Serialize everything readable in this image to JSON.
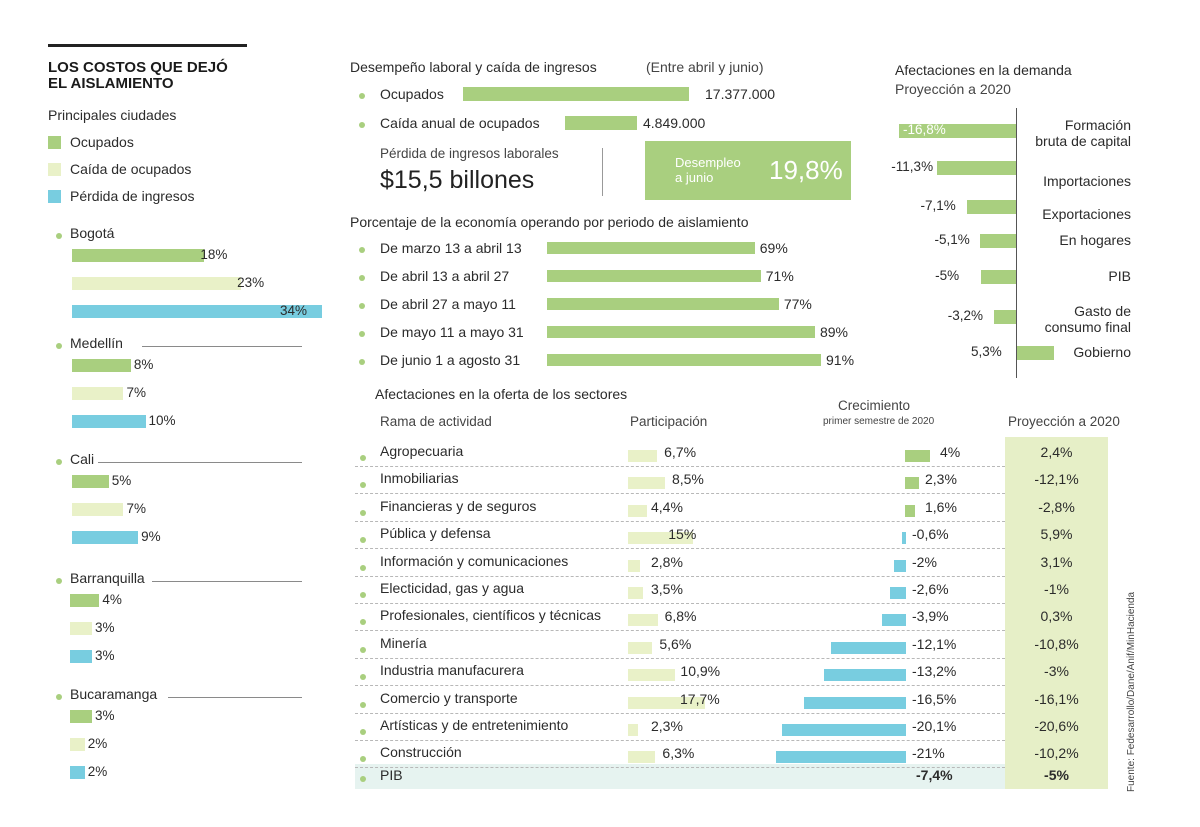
{
  "colors": {
    "ocupados": "#a9cf7f",
    "caida": "#e9f1c8",
    "perdida": "#78cde0",
    "proy_bg": "#e6efc7",
    "pib_bg": "#e6f3f0",
    "dot": "#a9cf7f"
  },
  "title": {
    "line1": "LOS COSTOS QUE DEJÓ",
    "line2": "EL AISLAMIENTO"
  },
  "cities": {
    "subtitle": "Principales ciudades",
    "legend": [
      {
        "label": "Ocupados",
        "color": "#a9cf7f"
      },
      {
        "label": "Caída de ocupados",
        "color": "#e9f1c8"
      },
      {
        "label": "Pérdida de ingresos",
        "color": "#78cde0"
      }
    ]
  },
  "employment": {
    "title": "Desempeño laboral y caída de ingresos",
    "note": "(Entre abril y junio)",
    "rows": [
      {
        "label": "Ocupados",
        "value": "17.377.000",
        "amount": 17377000
      },
      {
        "label": "Caída anual de ocupados",
        "value": "4.849.000",
        "amount": 4849000
      }
    ],
    "loss_label": "Pérdida de ingresos laborales",
    "loss_value": "$15,5 billones",
    "unemp_label1": "Desempleo",
    "unemp_label2": "a junio",
    "unemp_value": "19,8%"
  },
  "economy": {
    "title": "Porcentaje de la economía operando por periodo de aislamiento"
  },
  "demand": {
    "title": "Afectaciones en la demanda",
    "subtitle": "Proyección a 2020"
  },
  "supply": {
    "title": "Afectaciones en la oferta de los sectores",
    "col_rama": "Rama de actividad",
    "col_part": "Participación",
    "col_crec": "Crecimiento",
    "col_crec_sub": "primer semestre de 2020",
    "col_proy": "Proyección a 2020"
  },
  "source": "Fuente: Fedesarrollo/Dane/Anif/MinHacienda",
  "chart_data": [
    {
      "type": "bar",
      "title": "Principales ciudades",
      "categories": [
        "Bogotá",
        "Medellín",
        "Cali",
        "Barranquilla",
        "Bucaramanga"
      ],
      "series": [
        {
          "name": "Ocupados",
          "values": [
            18,
            8,
            5,
            4,
            3
          ],
          "labels": [
            "18%",
            "8%",
            "5%",
            "4%",
            "3%"
          ]
        },
        {
          "name": "Caída de ocupados",
          "values": [
            23,
            7,
            7,
            3,
            2
          ],
          "labels": [
            "23%",
            "7%",
            "7%",
            "3%",
            "2%"
          ]
        },
        {
          "name": "Pérdida de ingresos",
          "values": [
            34,
            10,
            9,
            3,
            2
          ],
          "labels": [
            "34%",
            "10%",
            "9%",
            "3%",
            "2%"
          ]
        }
      ]
    },
    {
      "type": "bar",
      "title": "Porcentaje de la economía operando por periodo de aislamiento",
      "categories": [
        "De marzo 13 a abril 13",
        "De abril 13 a abril 27",
        "De abril 27 a mayo 11",
        "De mayo 11 a mayo 31",
        "De junio 1 a agosto 31"
      ],
      "values": [
        69,
        71,
        77,
        89,
        91
      ],
      "labels": [
        "69%",
        "71%",
        "77%",
        "89%",
        "91%"
      ]
    },
    {
      "type": "bar",
      "title": "Afectaciones en la demanda",
      "subtitle": "Proyección a 2020",
      "categories": [
        "Formación bruta de capital",
        "Importaciones",
        "Exportaciones",
        "En hogares",
        "PIB",
        "Gasto de consumo final",
        "Gobierno"
      ],
      "label_lines": [
        [
          "Formación",
          "bruta de capital"
        ],
        [
          "Importaciones"
        ],
        [
          "Exportaciones"
        ],
        [
          "En hogares"
        ],
        [
          "PIB"
        ],
        [
          "Gasto de",
          "consumo final"
        ],
        [
          "Gobierno"
        ]
      ],
      "values": [
        -16.8,
        -11.3,
        -7.1,
        -5.1,
        -5,
        -3.2,
        5.3
      ],
      "labels": [
        "-16,8%",
        "-11,3%",
        "-7,1%",
        "-5,1%",
        "-5%",
        "-3,2%",
        "5,3%"
      ]
    },
    {
      "type": "table",
      "title": "Afectaciones en la oferta de los sectores",
      "rows": [
        {
          "rama": "Agropecuaria",
          "part": 6.7,
          "part_label": "6,7%",
          "crec": 4,
          "crec_label": "4%",
          "proy": "2,4%"
        },
        {
          "rama": "Inmobiliarias",
          "part": 8.5,
          "part_label": "8,5%",
          "crec": 2.3,
          "crec_label": "2,3%",
          "proy": "-12,1%"
        },
        {
          "rama": "Financieras y de seguros",
          "part": 4.4,
          "part_label": "4,4%",
          "crec": 1.6,
          "crec_label": "1,6%",
          "proy": "-2,8%"
        },
        {
          "rama": "Pública y defensa",
          "part": 15,
          "part_label": "15%",
          "crec": -0.6,
          "crec_label": "-0,6%",
          "proy": "5,9%"
        },
        {
          "rama": "Información y comunicaciones",
          "part": 2.8,
          "part_label": "2,8%",
          "crec": -2,
          "crec_label": "-2%",
          "proy": "3,1%"
        },
        {
          "rama": "Electicidad, gas y agua",
          "part": 3.5,
          "part_label": "3,5%",
          "crec": -2.6,
          "crec_label": "-2,6%",
          "proy": "-1%"
        },
        {
          "rama": "Profesionales, científicos y técnicas",
          "part": 6.8,
          "part_label": "6,8%",
          "crec": -3.9,
          "crec_label": "-3,9%",
          "proy": "0,3%"
        },
        {
          "rama": "Minería",
          "part": 5.6,
          "part_label": "5,6%",
          "crec": -12.1,
          "crec_label": "-12,1%",
          "proy": "-10,8%"
        },
        {
          "rama": "Industria manufacurera",
          "part": 10.9,
          "part_label": "10,9%",
          "crec": -13.2,
          "crec_label": "-13,2%",
          "proy": "-3%"
        },
        {
          "rama": "Comercio y transporte",
          "part": 17.7,
          "part_label": "17,7%",
          "crec": -16.5,
          "crec_label": "-16,5%",
          "proy": "-16,1%"
        },
        {
          "rama": "Artísticas y de entretenimiento",
          "part": 2.3,
          "part_label": "2,3%",
          "crec": -20.1,
          "crec_label": "-20,1%",
          "proy": "-20,6%"
        },
        {
          "rama": "Construcción",
          "part": 6.3,
          "part_label": "6,3%",
          "crec": -21,
          "crec_label": "-21%",
          "proy": "-10,2%"
        }
      ],
      "total": {
        "rama": "PIB",
        "crec_label": "-7,4%",
        "proy": "-5%"
      }
    }
  ]
}
